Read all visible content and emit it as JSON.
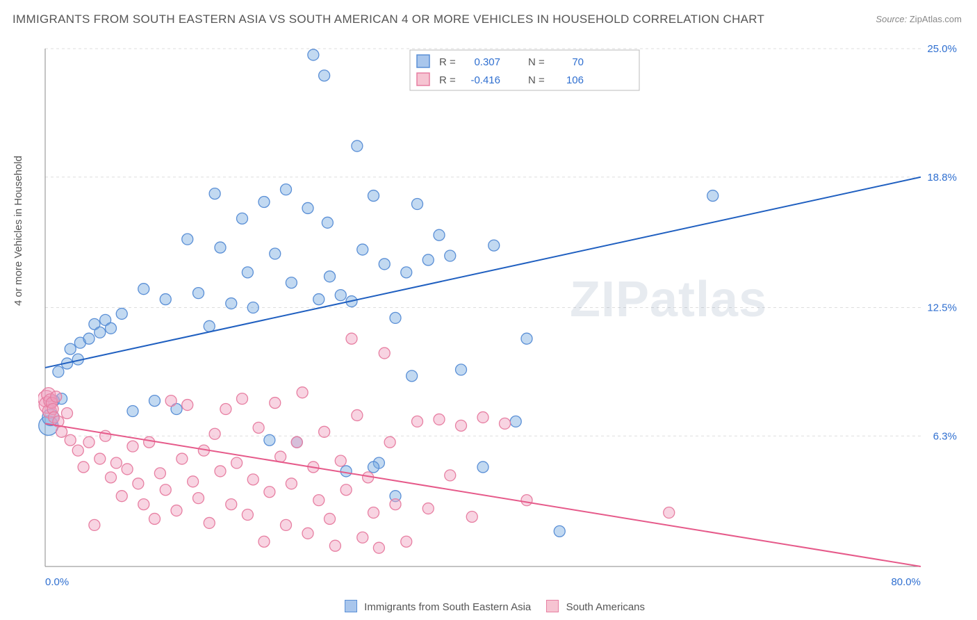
{
  "title": "IMMIGRANTS FROM SOUTH EASTERN ASIA VS SOUTH AMERICAN 4 OR MORE VEHICLES IN HOUSEHOLD CORRELATION CHART",
  "source_label": "Source:",
  "source_value": "ZipAtlas.com",
  "ylabel": "4 or more Vehicles in Household",
  "watermark": "ZIPatlas",
  "chart": {
    "type": "scatter",
    "xlim": [
      0,
      80
    ],
    "ylim": [
      0,
      25
    ],
    "x_tick_labels": [
      "0.0%",
      "80.0%"
    ],
    "y_tick_labels": [
      "6.3%",
      "12.5%",
      "18.8%",
      "25.0%"
    ],
    "y_tick_values": [
      6.3,
      12.5,
      18.8,
      25.0
    ],
    "grid_color": "#dddddd",
    "axis_color": "#888888",
    "background_color": "#ffffff",
    "x_axis_label_color": "#2f6fd0",
    "stats_box": {
      "border_color": "#bbbbbb",
      "bg_color": "#ffffff",
      "rows": [
        {
          "swatch_fill": "#a9c6ec",
          "swatch_stroke": "#5a8fd6",
          "r_label": "R =",
          "r_value": "0.307",
          "n_label": "N =",
          "n_value": "70",
          "value_color": "#2f6fd0"
        },
        {
          "swatch_fill": "#f6c4d2",
          "swatch_stroke": "#e77fa2",
          "r_label": "R =",
          "r_value": "-0.416",
          "n_label": "N =",
          "n_value": "106",
          "value_color": "#2f6fd0"
        }
      ]
    },
    "footer_legend": [
      {
        "swatch_fill": "#a9c6ec",
        "swatch_stroke": "#5a8fd6",
        "label": "Immigrants from South Eastern Asia"
      },
      {
        "swatch_fill": "#f6c4d2",
        "swatch_stroke": "#e77fa2",
        "label": "South Americans"
      }
    ],
    "series": [
      {
        "name": "Immigrants from South Eastern Asia",
        "marker_fill": "rgba(120,170,225,0.45)",
        "marker_stroke": "#5a8fd6",
        "marker_radius": 8,
        "line_color": "#1f5fc0",
        "line_width": 2,
        "regression": {
          "x1": 0,
          "y1": 9.6,
          "x2": 80,
          "y2": 18.8
        },
        "points": [
          [
            0.3,
            6.8,
            14
          ],
          [
            0.5,
            7.2,
            12
          ],
          [
            0.8,
            8.0,
            8
          ],
          [
            1.2,
            9.4,
            8
          ],
          [
            1.5,
            8.1,
            8
          ],
          [
            2.0,
            9.8,
            8
          ],
          [
            2.3,
            10.5,
            8
          ],
          [
            3.0,
            10.0,
            8
          ],
          [
            3.2,
            10.8,
            8
          ],
          [
            4.0,
            11.0,
            8
          ],
          [
            4.5,
            11.7,
            8
          ],
          [
            5.0,
            11.3,
            8
          ],
          [
            5.5,
            11.9,
            8
          ],
          [
            6.0,
            11.5,
            8
          ],
          [
            7.0,
            12.2,
            8
          ],
          [
            8.0,
            7.5,
            8
          ],
          [
            9.0,
            13.4,
            8
          ],
          [
            10.0,
            8.0,
            8
          ],
          [
            11.0,
            12.9,
            8
          ],
          [
            12.0,
            7.6,
            8
          ],
          [
            13.0,
            15.8,
            8
          ],
          [
            14.0,
            13.2,
            8
          ],
          [
            15.0,
            11.6,
            8
          ],
          [
            15.5,
            18.0,
            8
          ],
          [
            16.0,
            15.4,
            8
          ],
          [
            17.0,
            12.7,
            8
          ],
          [
            18.0,
            16.8,
            8
          ],
          [
            18.5,
            14.2,
            8
          ],
          [
            19.0,
            12.5,
            8
          ],
          [
            20.0,
            17.6,
            8
          ],
          [
            20.5,
            6.1,
            8
          ],
          [
            21.0,
            15.1,
            8
          ],
          [
            22.0,
            18.2,
            8
          ],
          [
            22.5,
            13.7,
            8
          ],
          [
            23.0,
            6.0,
            8
          ],
          [
            24.0,
            17.3,
            8
          ],
          [
            24.5,
            24.7,
            8
          ],
          [
            25.0,
            12.9,
            8
          ],
          [
            25.5,
            23.7,
            8
          ],
          [
            25.8,
            16.6,
            8
          ],
          [
            26.0,
            14.0,
            8
          ],
          [
            27.0,
            13.1,
            8
          ],
          [
            27.5,
            4.6,
            8
          ],
          [
            28.0,
            12.8,
            8
          ],
          [
            28.5,
            20.3,
            8
          ],
          [
            29.0,
            15.3,
            8
          ],
          [
            30.0,
            17.9,
            8
          ],
          [
            30.5,
            5.0,
            8
          ],
          [
            31.0,
            14.6,
            8
          ],
          [
            32.0,
            12.0,
            8
          ],
          [
            33.0,
            14.2,
            8
          ],
          [
            33.5,
            9.2,
            8
          ],
          [
            34.0,
            17.5,
            8
          ],
          [
            35.0,
            14.8,
            8
          ],
          [
            36.0,
            16.0,
            8
          ],
          [
            37.0,
            15.0,
            8
          ],
          [
            38.0,
            9.5,
            8
          ],
          [
            40.0,
            4.8,
            8
          ],
          [
            41.0,
            15.5,
            8
          ],
          [
            43.0,
            7.0,
            8
          ],
          [
            44.0,
            11.0,
            8
          ],
          [
            47.0,
            1.7,
            8
          ],
          [
            61.0,
            17.9,
            8
          ],
          [
            30.0,
            4.8,
            8
          ],
          [
            32.0,
            3.4,
            8
          ]
        ]
      },
      {
        "name": "South Americans",
        "marker_fill": "rgba(240,160,190,0.45)",
        "marker_stroke": "#e77fa2",
        "marker_radius": 8,
        "line_color": "#e65a8a",
        "line_width": 2,
        "regression": {
          "x1": 0,
          "y1": 6.9,
          "x2": 80,
          "y2": 0.0
        },
        "points": [
          [
            0.1,
            8.1,
            12
          ],
          [
            0.2,
            7.8,
            12
          ],
          [
            0.3,
            8.3,
            10
          ],
          [
            0.4,
            7.5,
            10
          ],
          [
            0.5,
            8.0,
            10
          ],
          [
            0.6,
            7.9,
            8
          ],
          [
            0.7,
            7.6,
            8
          ],
          [
            0.8,
            7.2,
            8
          ],
          [
            1.0,
            8.2,
            8
          ],
          [
            1.2,
            7.0,
            8
          ],
          [
            1.5,
            6.5,
            8
          ],
          [
            2.0,
            7.4,
            8
          ],
          [
            2.3,
            6.1,
            8
          ],
          [
            3.0,
            5.6,
            8
          ],
          [
            3.5,
            4.8,
            8
          ],
          [
            4.0,
            6.0,
            8
          ],
          [
            4.5,
            2.0,
            8
          ],
          [
            5.0,
            5.2,
            8
          ],
          [
            5.5,
            6.3,
            8
          ],
          [
            6.0,
            4.3,
            8
          ],
          [
            6.5,
            5.0,
            8
          ],
          [
            7.0,
            3.4,
            8
          ],
          [
            7.5,
            4.7,
            8
          ],
          [
            8.0,
            5.8,
            8
          ],
          [
            8.5,
            4.0,
            8
          ],
          [
            9.0,
            3.0,
            8
          ],
          [
            9.5,
            6.0,
            8
          ],
          [
            10.0,
            2.3,
            8
          ],
          [
            10.5,
            4.5,
            8
          ],
          [
            11.0,
            3.7,
            8
          ],
          [
            11.5,
            8.0,
            8
          ],
          [
            12.0,
            2.7,
            8
          ],
          [
            12.5,
            5.2,
            8
          ],
          [
            13.0,
            7.8,
            8
          ],
          [
            13.5,
            4.1,
            8
          ],
          [
            14.0,
            3.3,
            8
          ],
          [
            14.5,
            5.6,
            8
          ],
          [
            15.0,
            2.1,
            8
          ],
          [
            15.5,
            6.4,
            8
          ],
          [
            16.0,
            4.6,
            8
          ],
          [
            16.5,
            7.6,
            8
          ],
          [
            17.0,
            3.0,
            8
          ],
          [
            17.5,
            5.0,
            8
          ],
          [
            18.0,
            8.1,
            8
          ],
          [
            18.5,
            2.5,
            8
          ],
          [
            19.0,
            4.2,
            8
          ],
          [
            19.5,
            6.7,
            8
          ],
          [
            20.0,
            1.2,
            8
          ],
          [
            20.5,
            3.6,
            8
          ],
          [
            21.0,
            7.9,
            8
          ],
          [
            21.5,
            5.3,
            8
          ],
          [
            22.0,
            2.0,
            8
          ],
          [
            22.5,
            4.0,
            8
          ],
          [
            23.0,
            6.0,
            8
          ],
          [
            23.5,
            8.4,
            8
          ],
          [
            24.0,
            1.6,
            8
          ],
          [
            24.5,
            4.8,
            8
          ],
          [
            25.0,
            3.2,
            8
          ],
          [
            25.5,
            6.5,
            8
          ],
          [
            26.0,
            2.3,
            8
          ],
          [
            26.5,
            1.0,
            8
          ],
          [
            27.0,
            5.1,
            8
          ],
          [
            27.5,
            3.7,
            8
          ],
          [
            28.0,
            11.0,
            8
          ],
          [
            28.5,
            7.3,
            8
          ],
          [
            29.0,
            1.4,
            8
          ],
          [
            29.5,
            4.3,
            8
          ],
          [
            30.0,
            2.6,
            8
          ],
          [
            30.5,
            0.9,
            8
          ],
          [
            31.0,
            10.3,
            8
          ],
          [
            31.5,
            6.0,
            8
          ],
          [
            32.0,
            3.0,
            8
          ],
          [
            33.0,
            1.2,
            8
          ],
          [
            34.0,
            7.0,
            8
          ],
          [
            35.0,
            2.8,
            8
          ],
          [
            36.0,
            7.1,
            8
          ],
          [
            37.0,
            4.4,
            8
          ],
          [
            38.0,
            6.8,
            8
          ],
          [
            39.0,
            2.4,
            8
          ],
          [
            40.0,
            7.2,
            8
          ],
          [
            42.0,
            6.9,
            8
          ],
          [
            44.0,
            3.2,
            8
          ],
          [
            57.0,
            2.6,
            8
          ]
        ]
      }
    ]
  }
}
